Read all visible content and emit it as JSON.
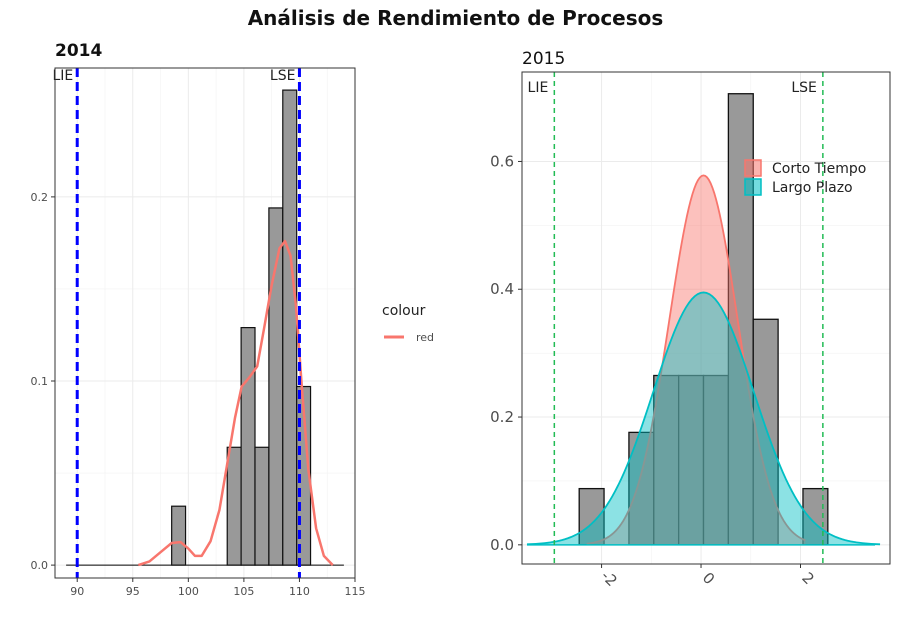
{
  "title": "Análisis de Rendimiento de Procesos",
  "chart_data": [
    {
      "type": "histogram",
      "title": "2014",
      "xlim": [
        88,
        115
      ],
      "ylim": [
        -0.007,
        0.27
      ],
      "xticks": [
        90,
        95,
        100,
        105,
        110,
        115
      ],
      "yticks": [
        0.0,
        0.1,
        0.2
      ],
      "ytick_labels": [
        "0.0",
        "0.1",
        "0.2"
      ],
      "bins": [
        {
          "x0": 98.5,
          "x1": 99.75,
          "density": 0.032
        },
        {
          "x0": 103.5,
          "x1": 104.75,
          "density": 0.064
        },
        {
          "x0": 104.75,
          "x1": 106.0,
          "density": 0.129
        },
        {
          "x0": 106.0,
          "x1": 107.25,
          "density": 0.064
        },
        {
          "x0": 107.25,
          "x1": 108.5,
          "density": 0.194
        },
        {
          "x0": 108.5,
          "x1": 109.75,
          "density": 0.258
        },
        {
          "x0": 109.75,
          "x1": 111.0,
          "density": 0.097
        }
      ],
      "baseline_range": [
        89,
        114
      ],
      "density_curve": {
        "color": "#F8766D",
        "points": [
          [
            95.5,
            0
          ],
          [
            96.5,
            0.002
          ],
          [
            97.5,
            0.007
          ],
          [
            98.5,
            0.012
          ],
          [
            99.3,
            0.0125
          ],
          [
            100,
            0.009
          ],
          [
            100.6,
            0.005
          ],
          [
            101.2,
            0.005
          ],
          [
            102,
            0.013
          ],
          [
            102.8,
            0.03
          ],
          [
            103.5,
            0.055
          ],
          [
            104.2,
            0.08
          ],
          [
            104.8,
            0.097
          ],
          [
            105.5,
            0.102
          ],
          [
            106.2,
            0.108
          ],
          [
            106.8,
            0.128
          ],
          [
            107.5,
            0.152
          ],
          [
            108.2,
            0.172
          ],
          [
            108.7,
            0.176
          ],
          [
            109.2,
            0.168
          ],
          [
            109.7,
            0.14
          ],
          [
            110.2,
            0.098
          ],
          [
            110.8,
            0.052
          ],
          [
            111.5,
            0.02
          ],
          [
            112.2,
            0.005
          ],
          [
            113,
            0
          ]
        ]
      },
      "spec_limits": [
        {
          "label": "LIE",
          "value": 90,
          "color": "#0000FF"
        },
        {
          "label": "LSE",
          "value": 110,
          "color": "#0000FF"
        }
      ],
      "legend": {
        "title": "colour",
        "entries": [
          {
            "label": "red",
            "color": "#F8766D"
          }
        ]
      }
    },
    {
      "type": "histogram",
      "title": "2015",
      "xlim": [
        -3.6,
        3.8
      ],
      "ylim": [
        -0.03,
        0.74
      ],
      "xticks": [
        -2,
        0,
        2
      ],
      "xtick_labels": [
        "-2",
        "0",
        "2"
      ],
      "yticks": [
        0.0,
        0.2,
        0.4,
        0.6
      ],
      "ytick_labels": [
        "0.0",
        "0.2",
        "0.4",
        "0.6"
      ],
      "bins": [
        {
          "x0": -2.45,
          "x1": -1.95,
          "density": 0.088
        },
        {
          "x0": -1.45,
          "x1": -0.95,
          "density": 0.176
        },
        {
          "x0": -0.95,
          "x1": -0.45,
          "density": 0.265
        },
        {
          "x0": -0.45,
          "x1": 0.05,
          "density": 0.265
        },
        {
          "x0": 0.05,
          "x1": 0.55,
          "density": 0.265
        },
        {
          "x0": 0.55,
          "x1": 1.05,
          "density": 0.706
        },
        {
          "x0": 1.05,
          "x1": 1.55,
          "density": 0.353
        },
        {
          "x0": 2.05,
          "x1": 2.55,
          "density": 0.088
        }
      ],
      "baseline_range": [
        -3.5,
        3.5
      ],
      "curves": [
        {
          "name": "Corto Tiempo",
          "mean": 0.05,
          "sd": 0.69,
          "range": [
            -2.3,
            2.1
          ],
          "color": "#F8766D",
          "fill": "#F8766D"
        },
        {
          "name": "Largo Plazo",
          "mean": 0.05,
          "sd": 1.01,
          "range": [
            -3.5,
            3.6
          ],
          "color": "#00BFC4",
          "fill": "#00BFC4"
        }
      ],
      "spec_limits": [
        {
          "label": "LIE",
          "value": -2.95,
          "color": "#22BB55"
        },
        {
          "label": "LSE",
          "value": 2.45,
          "color": "#22BB55"
        }
      ],
      "legend": {
        "entries": [
          {
            "label": "Corto Tiempo",
            "color": "#F8766D"
          },
          {
            "label": "Largo Plazo",
            "color": "#00BFC4"
          }
        ]
      }
    }
  ]
}
